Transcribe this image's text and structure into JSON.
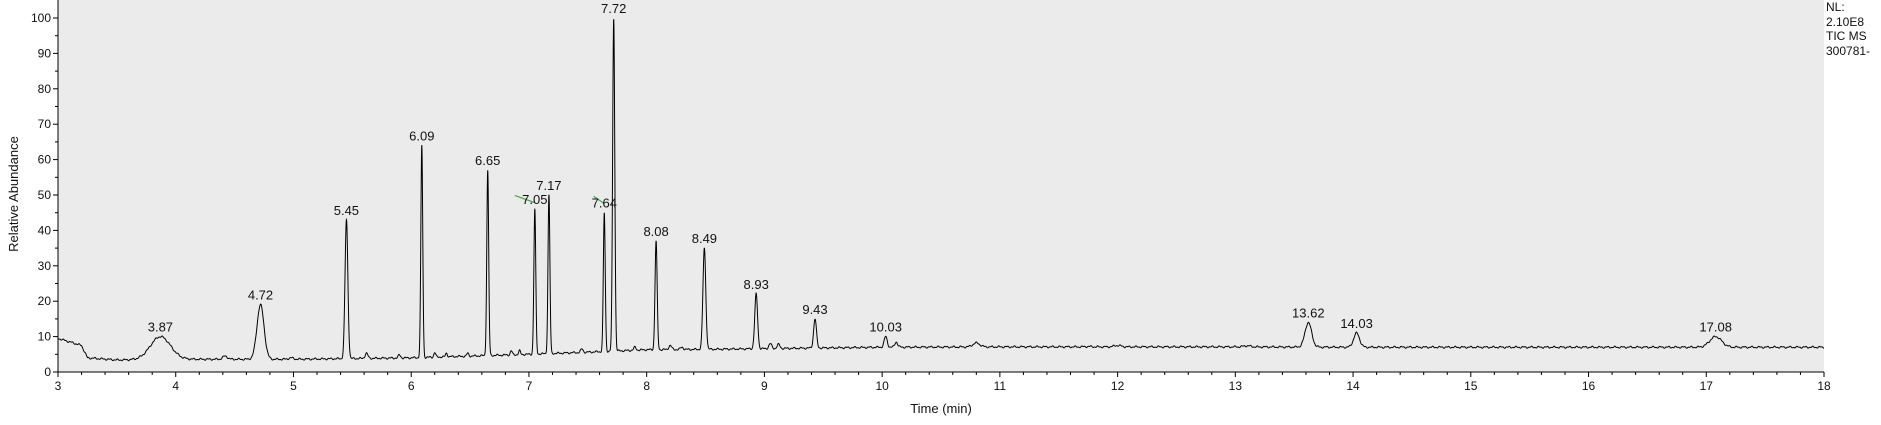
{
  "side_info": {
    "nl_label": "NL:",
    "nl_value": "2.10E8",
    "scan_filter": "TIC  MS",
    "file_name": "300781-"
  },
  "colors": {
    "trace": "#000000",
    "plot_bg": "#ebebeb",
    "baseline_marker": "#3fae3f"
  },
  "chart_data": {
    "type": "line",
    "xlabel": "Time (min)",
    "ylabel": "Relative Abundance",
    "xlim": [
      3,
      18
    ],
    "ylim": [
      0,
      100
    ],
    "xticks": [
      3,
      4,
      5,
      6,
      7,
      8,
      9,
      10,
      11,
      12,
      13,
      14,
      15,
      16,
      17,
      18
    ],
    "yticks": [
      0,
      10,
      20,
      30,
      40,
      50,
      60,
      70,
      80,
      90,
      100
    ],
    "grid": false,
    "peaks": [
      {
        "rt": 3.87,
        "label": "3.87",
        "height": 10,
        "width": 0.085
      },
      {
        "rt": 4.72,
        "label": "4.72",
        "height": 19,
        "width": 0.03
      },
      {
        "rt": 5.45,
        "label": "5.45",
        "height": 43,
        "width": 0.012
      },
      {
        "rt": 6.09,
        "label": "6.09",
        "height": 64,
        "width": 0.008
      },
      {
        "rt": 6.65,
        "label": "6.65",
        "height": 57,
        "width": 0.008
      },
      {
        "rt": 7.05,
        "label": "7.05",
        "height": 46,
        "width": 0.008
      },
      {
        "rt": 7.17,
        "label": "7.17",
        "height": 50,
        "width": 0.008
      },
      {
        "rt": 7.64,
        "label": "7.64",
        "height": 45,
        "width": 0.008
      },
      {
        "rt": 7.72,
        "label": "7.72",
        "height": 100,
        "width": 0.009
      },
      {
        "rt": 8.08,
        "label": "8.08",
        "height": 37,
        "width": 0.009
      },
      {
        "rt": 8.49,
        "label": "8.49",
        "height": 35,
        "width": 0.012
      },
      {
        "rt": 8.93,
        "label": "8.93",
        "height": 22,
        "width": 0.012
      },
      {
        "rt": 9.43,
        "label": "9.43",
        "height": 15,
        "width": 0.012
      },
      {
        "rt": 10.03,
        "label": "10.03",
        "height": 10,
        "width": 0.013
      },
      {
        "rt": 13.62,
        "label": "13.62",
        "height": 14,
        "width": 0.028
      },
      {
        "rt": 14.03,
        "label": "14.03",
        "height": 11,
        "width": 0.025
      },
      {
        "rt": 17.08,
        "label": "17.08",
        "height": 10,
        "width": 0.05
      }
    ],
    "minor_peaks": [
      {
        "rt": 4.42,
        "height": 4.5,
        "width": 0.02
      },
      {
        "rt": 4.98,
        "height": 4,
        "width": 0.02
      },
      {
        "rt": 5.62,
        "height": 5.3,
        "width": 0.012
      },
      {
        "rt": 5.9,
        "height": 4.8,
        "width": 0.01
      },
      {
        "rt": 6.2,
        "height": 5.5,
        "width": 0.008
      },
      {
        "rt": 6.3,
        "height": 5.3,
        "width": 0.008
      },
      {
        "rt": 6.48,
        "height": 5.3,
        "width": 0.008
      },
      {
        "rt": 6.85,
        "height": 6,
        "width": 0.008
      },
      {
        "rt": 6.92,
        "height": 6,
        "width": 0.008
      },
      {
        "rt": 7.45,
        "height": 6.5,
        "width": 0.01
      },
      {
        "rt": 7.9,
        "height": 7,
        "width": 0.01
      },
      {
        "rt": 8.2,
        "height": 7.5,
        "width": 0.012
      },
      {
        "rt": 8.3,
        "height": 7,
        "width": 0.012
      },
      {
        "rt": 9.05,
        "height": 8,
        "width": 0.012
      },
      {
        "rt": 9.12,
        "height": 7.8,
        "width": 0.012
      },
      {
        "rt": 10.12,
        "height": 8.5,
        "width": 0.012
      },
      {
        "rt": 10.8,
        "height": 8.2,
        "width": 0.03
      },
      {
        "rt": 11.75,
        "height": 7.2,
        "width": 0.03
      },
      {
        "rt": 12.0,
        "height": 7.5,
        "width": 0.03
      },
      {
        "rt": 13.1,
        "height": 7.4,
        "width": 0.03
      }
    ],
    "baseline_points": [
      {
        "x": 3.0,
        "y": 9.5
      },
      {
        "x": 3.1,
        "y": 8.5
      },
      {
        "x": 3.2,
        "y": 7.5
      },
      {
        "x": 3.25,
        "y": 4
      },
      {
        "x": 3.5,
        "y": 3.4
      },
      {
        "x": 4.0,
        "y": 3.6
      },
      {
        "x": 5.0,
        "y": 3.6
      },
      {
        "x": 6.0,
        "y": 4.0
      },
      {
        "x": 7.0,
        "y": 5.0
      },
      {
        "x": 7.5,
        "y": 5.6
      },
      {
        "x": 8.0,
        "y": 6.3
      },
      {
        "x": 8.5,
        "y": 6.4
      },
      {
        "x": 9.0,
        "y": 6.6
      },
      {
        "x": 10.0,
        "y": 7.0
      },
      {
        "x": 11.0,
        "y": 7.1
      },
      {
        "x": 12.0,
        "y": 7.1
      },
      {
        "x": 13.0,
        "y": 7.1
      },
      {
        "x": 14.0,
        "y": 7.0
      },
      {
        "x": 16.0,
        "y": 7.0
      },
      {
        "x": 18.0,
        "y": 7.0
      }
    ]
  }
}
